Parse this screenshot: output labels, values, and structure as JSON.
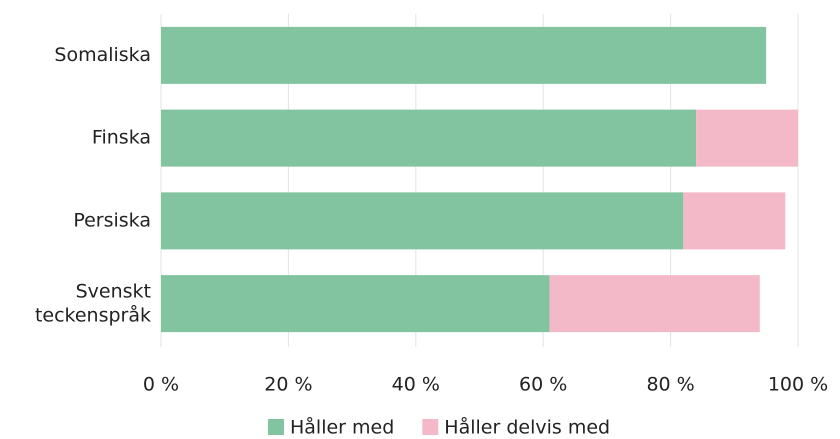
{
  "chart_data": {
    "type": "stacked_barh",
    "categories": [
      "Somaliska",
      "Finska",
      "Persiska",
      "Svenskt teckenspråk"
    ],
    "series": [
      {
        "name": "Håller med",
        "color": "#82c4a0",
        "values": [
          95,
          84,
          82,
          61
        ]
      },
      {
        "name": "Håller delvis med",
        "color": "#f4b9c8",
        "values": [
          0,
          16,
          16,
          33
        ]
      }
    ],
    "xlim": [
      0,
      100
    ],
    "xticks": [
      {
        "value": 0,
        "label": "0 %"
      },
      {
        "value": 20,
        "label": "20 %"
      },
      {
        "value": 40,
        "label": "40 %"
      },
      {
        "value": 60,
        "label": "60 %"
      },
      {
        "value": 80,
        "label": "80 %"
      },
      {
        "value": 100,
        "label": "100 %"
      }
    ],
    "grid": true,
    "legend": "bottom"
  }
}
